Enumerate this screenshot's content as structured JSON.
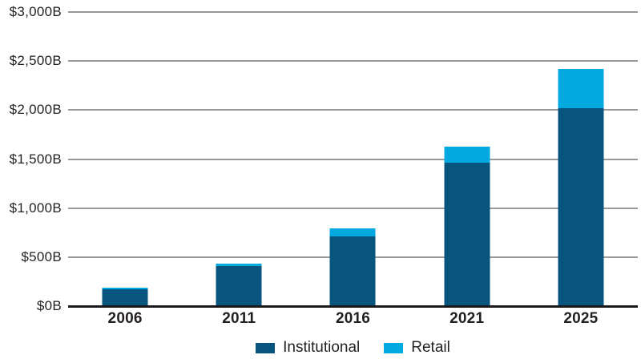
{
  "chart_data": {
    "type": "bar",
    "stacked": true,
    "title": "",
    "xlabel": "",
    "ylabel": "",
    "unit_suffix": "B",
    "currency_prefix": "$",
    "categories": [
      "2006",
      "2011",
      "2016",
      "2021",
      "2025"
    ],
    "series": [
      {
        "name": "Institutional",
        "color": "#07547E",
        "values": [
          175,
          410,
          715,
          1465,
          2020
        ]
      },
      {
        "name": "Retail",
        "color": "#00A9E0",
        "values": [
          15,
          20,
          80,
          165,
          400
        ]
      }
    ],
    "totals": [
      190,
      430,
      795,
      1630,
      2420
    ],
    "ylim": [
      0,
      3000
    ],
    "y_tick_step": 500,
    "y_tick_labels": [
      "$0B",
      "$500B",
      "$1,000B",
      "$1,500B",
      "$2,000B",
      "$2,500B",
      "$3,000B"
    ],
    "grid": "horizontal",
    "legend_position": "bottom"
  },
  "colors": {
    "institutional": "#07547E",
    "retail": "#00A9E0",
    "gridline": "#9A9A9A",
    "axis_line": "#1A1A1A",
    "text": "#231F20",
    "background": "#FFFFFF"
  }
}
